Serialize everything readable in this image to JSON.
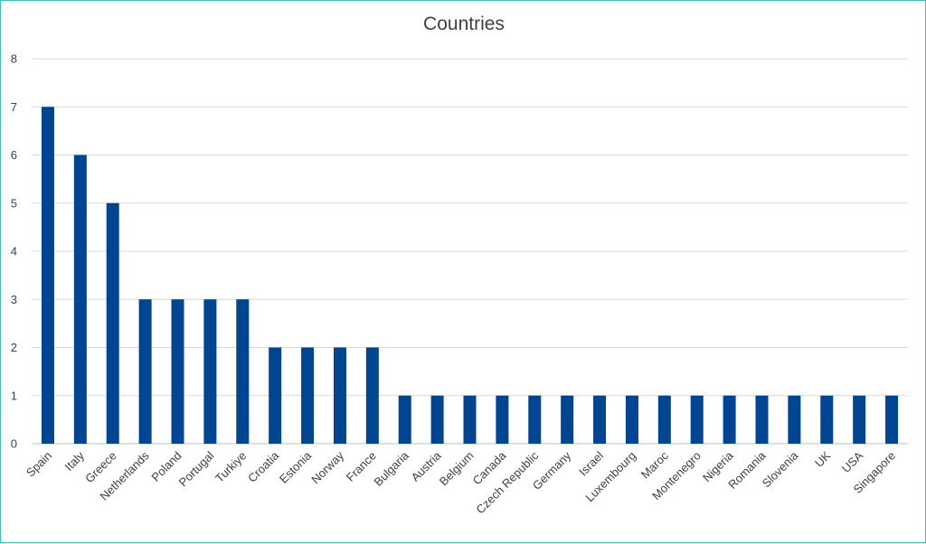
{
  "chart_data": {
    "type": "bar",
    "title": "Countries",
    "xlabel": "",
    "ylabel": "",
    "ylim": [
      0,
      8
    ],
    "yticks": [
      0,
      1,
      2,
      3,
      4,
      5,
      6,
      7,
      8
    ],
    "grid": true,
    "bar_color": "#004592",
    "categories": [
      "Spain",
      "Italy",
      "Greece",
      "Netherlands",
      "Poland",
      "Portugal",
      "Turkiye",
      "Croatia",
      "Estonia",
      "Norway",
      "France",
      "Bulgaria",
      "Austria",
      "Belgium",
      "Canada",
      "Czech Republic",
      "Germany",
      "Israel",
      "Luxembourg",
      "Maroc",
      "Montenegro",
      "Nigeria",
      "Romania",
      "Slovenia",
      "UK",
      "USA",
      "Singapore"
    ],
    "values": [
      7,
      6,
      5,
      3,
      3,
      3,
      3,
      2,
      2,
      2,
      2,
      1,
      1,
      1,
      1,
      1,
      1,
      1,
      1,
      1,
      1,
      1,
      1,
      1,
      1,
      1,
      1
    ]
  }
}
